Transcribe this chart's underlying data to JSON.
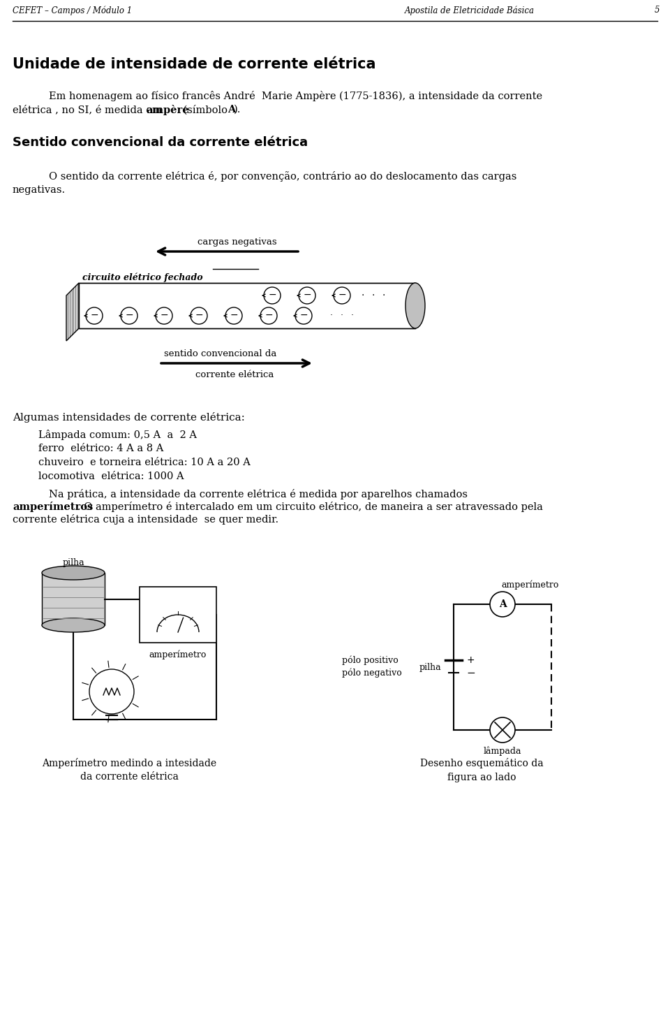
{
  "header_left": "CEFET – Campos / Módulo 1",
  "header_right": "Apostila de Eletricidade Básica",
  "header_page": "5",
  "title1": "Unidade de intensidade de corrente elétrica",
  "title2": "Sentido convencional da corrente elétrica",
  "title3": "Algumas intensidades de corrente elétrica:",
  "intensidades": [
    "Lâmpada comum: 0,5 A  a  2 A",
    "ferro  elétrico: 4 A a 8 A",
    "chuveiro  e torneira elétrica: 10 A a 20 A",
    "locomotiva  elétrica: 1000 A"
  ],
  "label_cargas": "cargas negativas",
  "label_circuito": "circuito elétrico fechado",
  "label_sentido1": "sentido convencional da",
  "label_sentido2": "corrente elétrica",
  "caption_left": "Amperímetro medindo a intesidade\nda corrente elétrica",
  "caption_right": "Desenho esquemático da\nfigura ao lado",
  "label_pilha1": "pilha",
  "label_amperimetro1": "amperímetro",
  "label_amperimetro2": "amperímetro",
  "label_polo_pos": "pólo positivo",
  "label_polo_neg": "pólo negativo",
  "label_pilha2": "pilha",
  "label_lampada": "lâmpada",
  "bg_color": "#ffffff",
  "text_color": "#000000"
}
